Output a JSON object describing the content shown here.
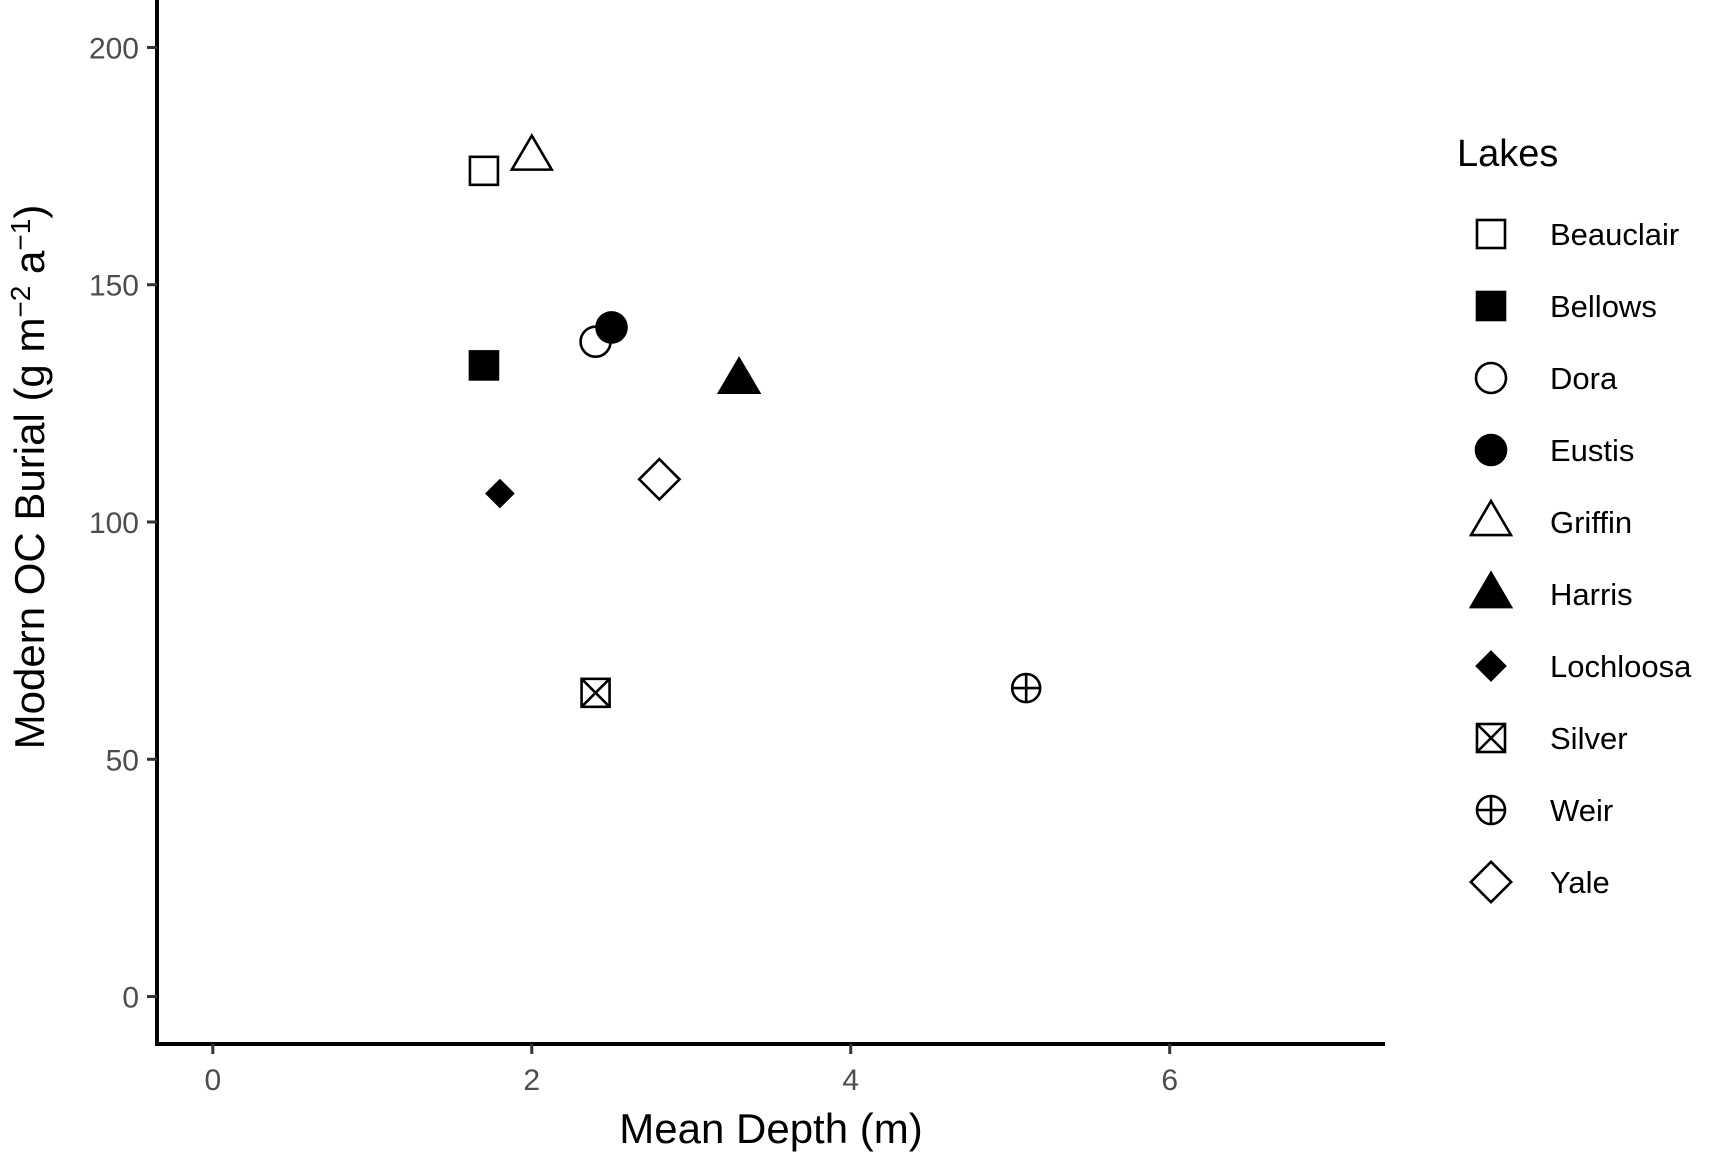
{
  "chart_data": {
    "type": "scatter",
    "xlabel": "Mean Depth (m)",
    "ylabel": {
      "text": "Modern OC Burial (g m",
      "sup1": "−2",
      "mid": " a",
      "sup2": "−1",
      "end": ")"
    },
    "xlim": [
      -0.35,
      7.35
    ],
    "ylim": [
      -10,
      210
    ],
    "x_ticks": [
      0,
      2,
      4,
      6
    ],
    "y_ticks": [
      0,
      50,
      100,
      150,
      200
    ],
    "x_tick_labels": [
      "0",
      "2",
      "4",
      "6"
    ],
    "y_tick_labels": [
      "0",
      "50",
      "100",
      "150",
      "200"
    ],
    "grid": false,
    "legend": {
      "title": "Lakes",
      "position": "right"
    },
    "series": [
      {
        "name": "Beauclair",
        "shape": "square-open",
        "x": 1.7,
        "y": 174
      },
      {
        "name": "Bellows",
        "shape": "square-filled",
        "x": 1.7,
        "y": 133
      },
      {
        "name": "Dora",
        "shape": "circle-open",
        "x": 2.4,
        "y": 138
      },
      {
        "name": "Eustis",
        "shape": "circle-filled",
        "x": 2.5,
        "y": 141
      },
      {
        "name": "Griffin",
        "shape": "triangle-open",
        "x": 2.0,
        "y": 177
      },
      {
        "name": "Harris",
        "shape": "triangle-filled",
        "x": 3.3,
        "y": 130
      },
      {
        "name": "Lochloosa",
        "shape": "diamond-filled",
        "x": 1.8,
        "y": 106
      },
      {
        "name": "Silver",
        "shape": "square-cross",
        "x": 2.4,
        "y": 64
      },
      {
        "name": "Weir",
        "shape": "circle-plus",
        "x": 5.1,
        "y": 65
      },
      {
        "name": "Yale",
        "shape": "diamond-open",
        "x": 2.8,
        "y": 109
      }
    ]
  }
}
